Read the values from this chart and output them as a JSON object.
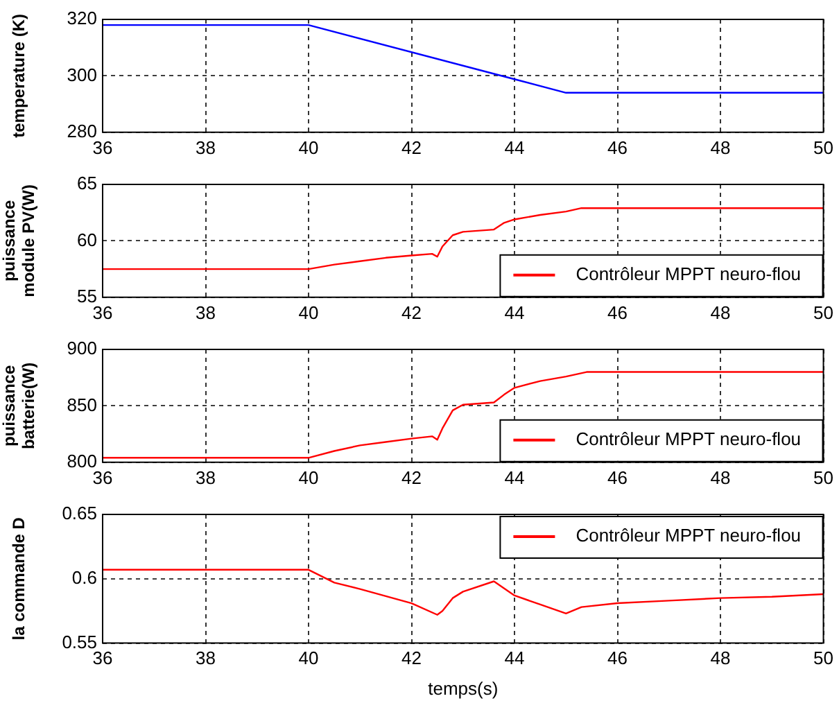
{
  "chart_data": [
    {
      "type": "line",
      "ylabel": "temperature (K)",
      "x": [
        36,
        40,
        44,
        45,
        50
      ],
      "series": [
        {
          "color": "#0000ff",
          "values": [
            318,
            318,
            298.8,
            294,
            294
          ]
        }
      ],
      "xlim": [
        36,
        50
      ],
      "xticks": [
        36,
        38,
        40,
        42,
        44,
        46,
        48,
        50
      ],
      "ylim": [
        280,
        320
      ],
      "yticks": [
        280,
        300,
        320
      ],
      "grid": true,
      "legend": false
    },
    {
      "type": "line",
      "ylabel": "puissance module PV(W)",
      "x": [
        36,
        40,
        40.5,
        41,
        41.5,
        42,
        42.4,
        42.5,
        42.6,
        42.8,
        43,
        43.6,
        43.8,
        44,
        44.5,
        45,
        45.3,
        50
      ],
      "series": [
        {
          "name": "Contrôleur MPPT neuro-flou",
          "color": "#ff0000",
          "values": [
            57.5,
            57.5,
            57.9,
            58.2,
            58.5,
            58.7,
            58.85,
            58.6,
            59.5,
            60.5,
            60.8,
            61.0,
            61.6,
            61.9,
            62.3,
            62.6,
            62.9,
            62.9
          ]
        }
      ],
      "xlim": [
        36,
        50
      ],
      "xticks": [
        36,
        38,
        40,
        42,
        44,
        46,
        48,
        50
      ],
      "ylim": [
        55,
        65
      ],
      "yticks": [
        55,
        60,
        65
      ],
      "grid": true,
      "legend": "bottom right"
    },
    {
      "type": "line",
      "ylabel": "puissance batterie(W)",
      "x": [
        36,
        40,
        40.5,
        41,
        41.5,
        42,
        42.4,
        42.5,
        42.6,
        42.8,
        43,
        43.6,
        43.8,
        44,
        44.5,
        45,
        45.4,
        50
      ],
      "series": [
        {
          "name": "Contrôleur MPPT neuro-flou",
          "color": "#ff0000",
          "values": [
            804,
            804,
            810,
            815,
            818,
            821,
            823,
            820,
            830,
            846,
            851,
            853,
            860,
            866,
            872,
            876,
            880,
            880
          ]
        }
      ],
      "xlim": [
        36,
        50
      ],
      "xticks": [
        36,
        38,
        40,
        42,
        44,
        46,
        48,
        50
      ],
      "ylim": [
        800,
        900
      ],
      "yticks": [
        800,
        850,
        900
      ],
      "grid": true,
      "legend": "bottom right"
    },
    {
      "type": "line",
      "ylabel": "la commande D",
      "xlabel": "temps(s)",
      "x": [
        36,
        40,
        40.5,
        41,
        42,
        42.5,
        42.6,
        42.8,
        43,
        43.6,
        44,
        44.5,
        45,
        45.3,
        46,
        47,
        48,
        49,
        50
      ],
      "series": [
        {
          "name": "Contrôleur MPPT neuro-flou",
          "color": "#ff0000",
          "values": [
            0.607,
            0.607,
            0.597,
            0.592,
            0.581,
            0.572,
            0.575,
            0.585,
            0.59,
            0.598,
            0.587,
            0.58,
            0.573,
            0.578,
            0.581,
            0.583,
            0.585,
            0.586,
            0.588
          ]
        }
      ],
      "xlim": [
        36,
        50
      ],
      "xticks": [
        36,
        38,
        40,
        42,
        44,
        46,
        48,
        50
      ],
      "ylim": [
        0.55,
        0.65
      ],
      "yticks": [
        0.55,
        0.6,
        0.65
      ],
      "grid": true,
      "legend": "top right"
    }
  ]
}
